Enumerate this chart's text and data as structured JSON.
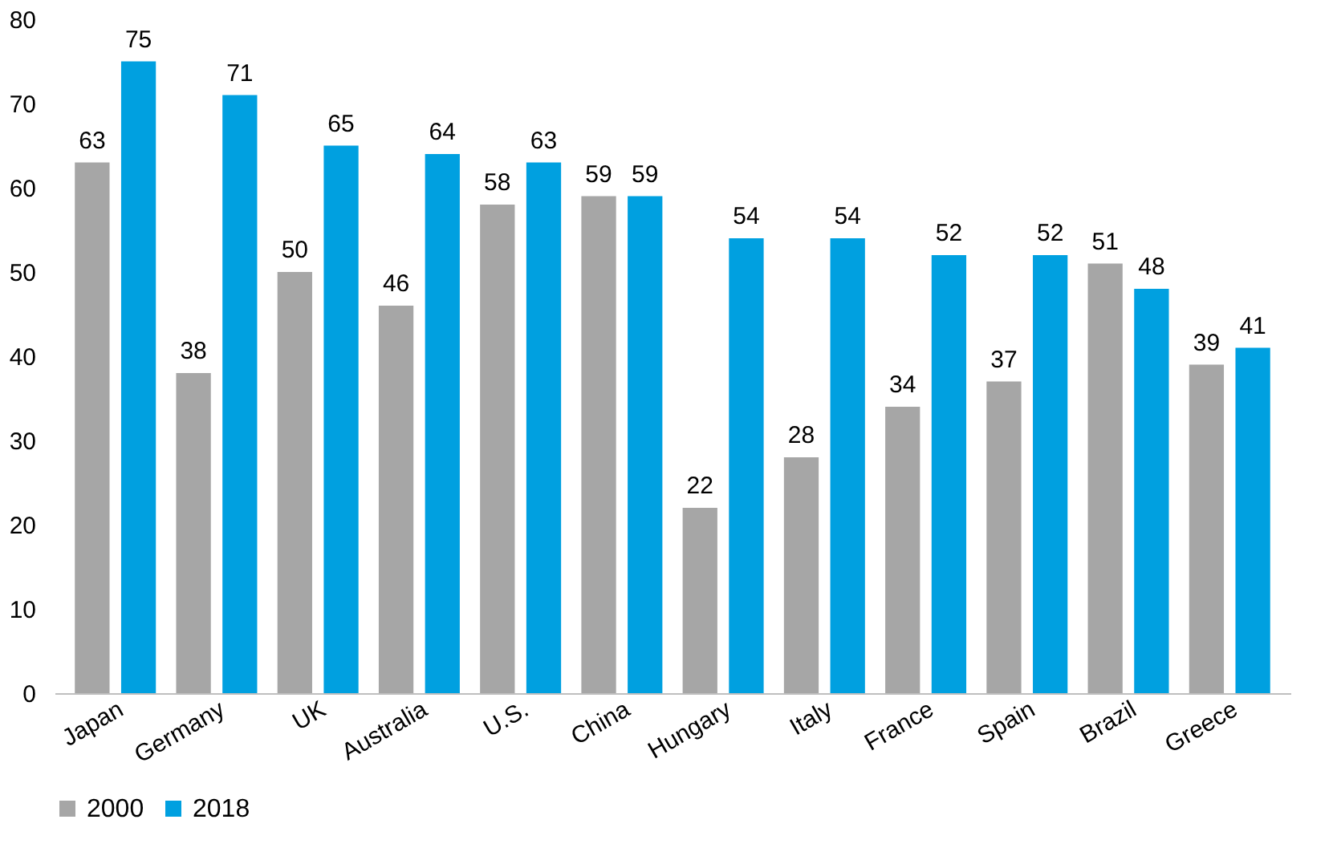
{
  "chart_data": {
    "type": "bar",
    "categories": [
      "Japan",
      "Germany",
      "UK",
      "Australia",
      "U.S.",
      "China",
      "Hungary",
      "Italy",
      "France",
      "Spain",
      "Brazil",
      "Greece"
    ],
    "series": [
      {
        "name": "2000",
        "color": "#a6a6a6",
        "values": [
          63,
          38,
          50,
          46,
          58,
          59,
          22,
          28,
          34,
          37,
          51,
          39
        ]
      },
      {
        "name": "2018",
        "color": "#00a0e0",
        "values": [
          75,
          71,
          65,
          64,
          63,
          59,
          54,
          54,
          52,
          52,
          48,
          41
        ]
      }
    ],
    "ylim": [
      0,
      80
    ],
    "yticks": [
      0,
      10,
      20,
      30,
      40,
      50,
      60,
      70,
      80
    ],
    "grid": false,
    "legend": "bottom",
    "data_labels": true
  }
}
